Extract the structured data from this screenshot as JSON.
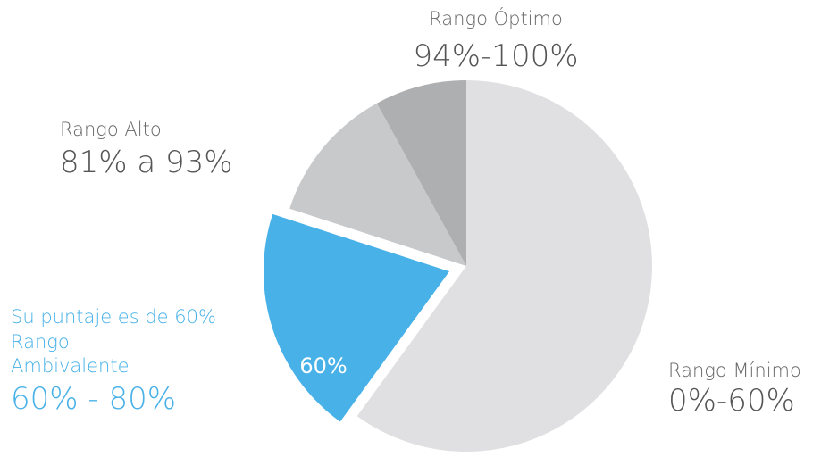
{
  "chart_data": {
    "type": "pie",
    "categories": [
      "Rango Mínimo",
      "Rango Ambivalente",
      "Rango Alto",
      "Rango Óptimo"
    ],
    "ranges": [
      "0%-60%",
      "60% - 80%",
      "81% a 93%",
      "94%-100%"
    ],
    "values": [
      60,
      20,
      12,
      8
    ],
    "colors": [
      "#e0e0e2",
      "#47b1e8",
      "#c8c9cb",
      "#aeafb1"
    ],
    "highlight": 1,
    "highlight_note": "Su puntaje es de 60%",
    "slice_label": "60%"
  }
}
